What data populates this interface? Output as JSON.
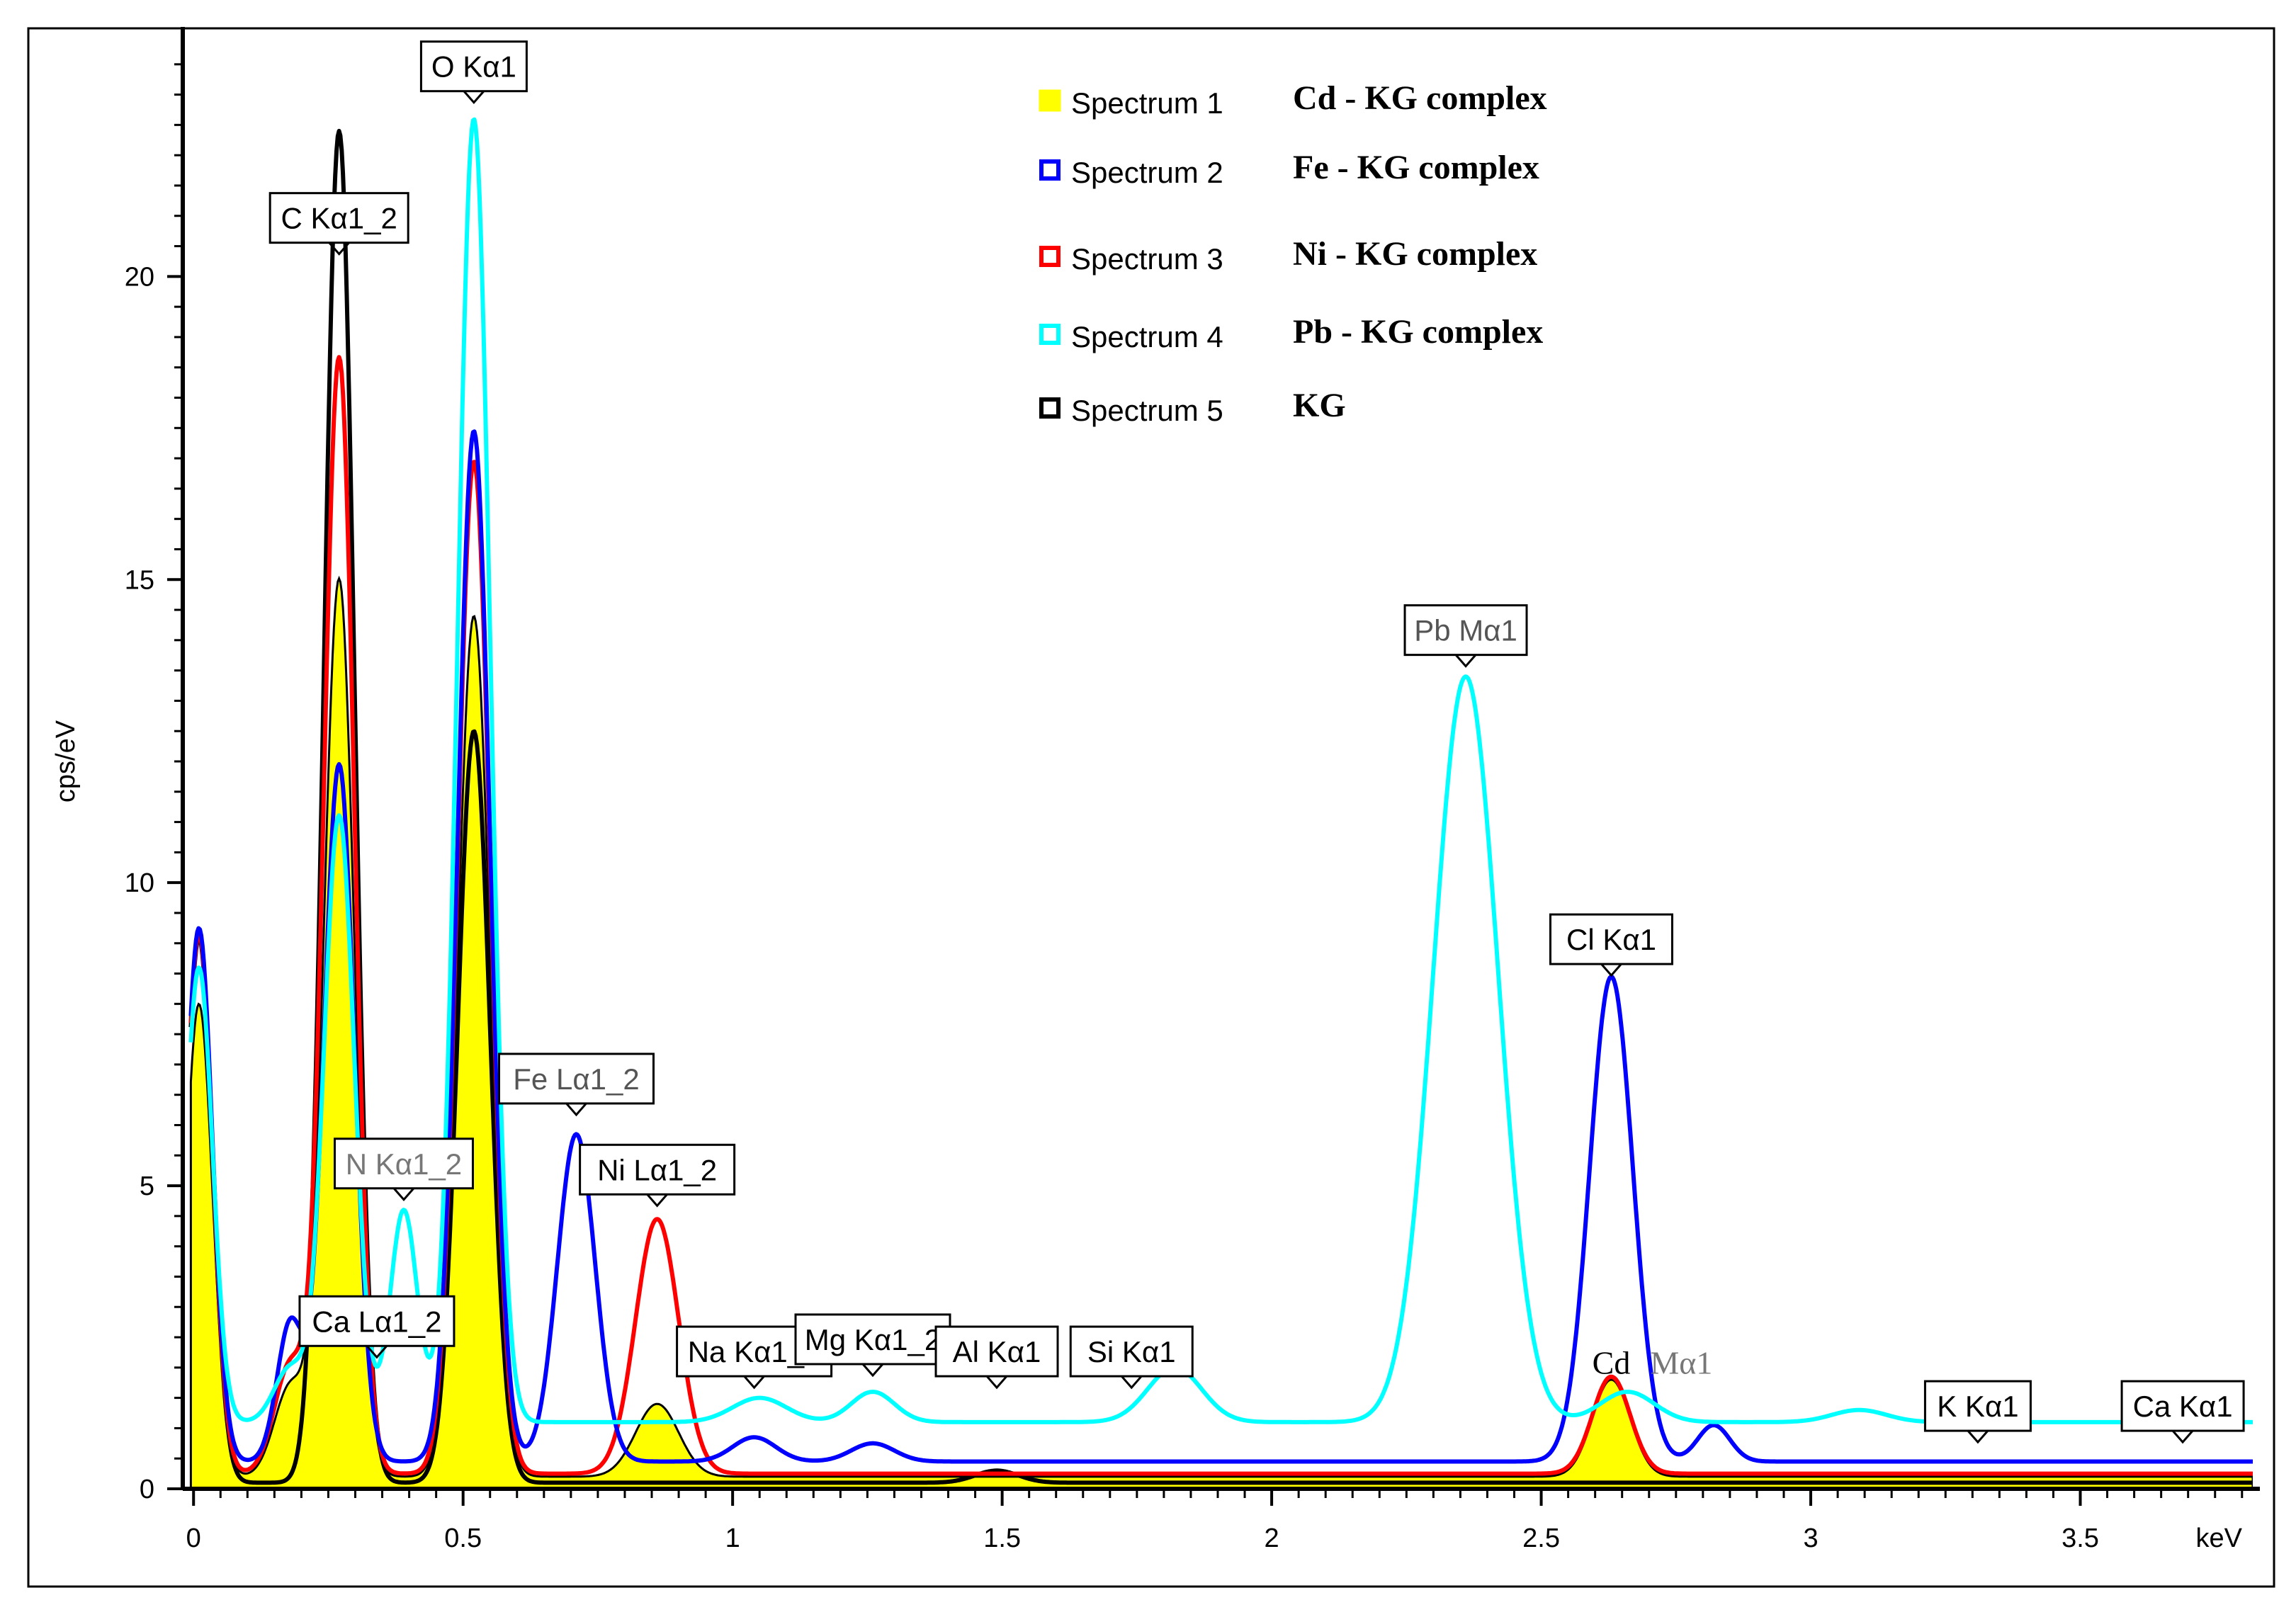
{
  "chart_data": {
    "type": "line",
    "title": "",
    "xlabel": "keV",
    "ylabel": "cps/eV",
    "xlim": [
      -0.02,
      3.82
    ],
    "ylim": [
      0,
      24
    ],
    "x_ticks": [
      0,
      0.5,
      1,
      1.5,
      2,
      2.5,
      3,
      3.5
    ],
    "x_tick_labels": [
      "0",
      "0.5",
      "1",
      "1.5",
      "2",
      "2.5",
      "3",
      "3.5"
    ],
    "y_ticks": [
      0,
      5,
      10,
      15,
      20
    ],
    "y_tick_labels": [
      "0",
      "5",
      "10",
      "15",
      "20"
    ],
    "grid": false,
    "legend_position": "top-center",
    "series": [
      {
        "name": "Spectrum 1",
        "description": "Cd - KG complex",
        "color": "#ffff00",
        "filled": true,
        "baseline": 0.2,
        "peaks": [
          [
            0.01,
            7.8,
            0.025
          ],
          [
            0.18,
            1.5,
            0.03
          ],
          [
            0.27,
            14.8,
            0.028
          ],
          [
            0.52,
            14.2,
            0.03
          ],
          [
            0.86,
            1.2,
            0.04
          ],
          [
            2.63,
            1.6,
            0.035
          ]
        ]
      },
      {
        "name": "Spectrum 2",
        "description": "Fe - KG complex",
        "color": "#0000ff",
        "filled": false,
        "baseline": 0.45,
        "peaks": [
          [
            0.01,
            8.8,
            0.025
          ],
          [
            0.18,
            2.3,
            0.025
          ],
          [
            0.27,
            11.5,
            0.028
          ],
          [
            0.52,
            17.0,
            0.03
          ],
          [
            0.71,
            5.4,
            0.035
          ],
          [
            1.04,
            0.4,
            0.04
          ],
          [
            1.26,
            0.3,
            0.04
          ],
          [
            2.63,
            8.0,
            0.04
          ],
          [
            2.82,
            0.6,
            0.03
          ]
        ]
      },
      {
        "name": "Spectrum 3",
        "description": "Ni - KG complex",
        "color": "#ff0000",
        "filled": false,
        "baseline": 0.25,
        "peaks": [
          [
            0.01,
            8.9,
            0.025
          ],
          [
            0.18,
            1.8,
            0.03
          ],
          [
            0.27,
            18.4,
            0.028
          ],
          [
            0.52,
            16.7,
            0.03
          ],
          [
            0.86,
            4.2,
            0.04
          ],
          [
            2.63,
            1.6,
            0.035
          ]
        ]
      },
      {
        "name": "Spectrum 4",
        "description": "Pb - KG complex",
        "color": "#00ffff",
        "filled": false,
        "baseline": 1.1,
        "peaks": [
          [
            0.01,
            7.5,
            0.025
          ],
          [
            0.18,
            0.9,
            0.03
          ],
          [
            0.27,
            10.0,
            0.028
          ],
          [
            0.39,
            3.5,
            0.025
          ],
          [
            0.52,
            21.5,
            0.03
          ],
          [
            1.05,
            0.4,
            0.05
          ],
          [
            1.26,
            0.5,
            0.04
          ],
          [
            1.82,
            0.9,
            0.05
          ],
          [
            2.36,
            12.3,
            0.06
          ],
          [
            2.66,
            0.5,
            0.05
          ],
          [
            3.09,
            0.2,
            0.05
          ]
        ]
      },
      {
        "name": "Spectrum 5",
        "description": "KG",
        "color": "#000000",
        "filled": false,
        "baseline": 0.1,
        "peaks": [
          [
            0.01,
            9.0,
            0.025
          ],
          [
            0.27,
            22.3,
            0.028
          ],
          [
            0.52,
            12.4,
            0.03
          ],
          [
            1.49,
            0.2,
            0.04
          ]
        ]
      }
    ],
    "annotations": [
      {
        "text": "O Kα1",
        "x": 0.52,
        "y": 22.8,
        "color": "#000000"
      },
      {
        "text": "C Kα1_2",
        "x": 0.27,
        "y": 20.3,
        "color": "#000000"
      },
      {
        "text": "Pb Mα1",
        "x": 2.36,
        "y": 13.5,
        "color": "#555555"
      },
      {
        "text": "Cl Kα1",
        "x": 2.63,
        "y": 8.4,
        "color": "#000000"
      },
      {
        "text": "Fe Lα1_2",
        "x": 0.71,
        "y": 6.1,
        "color": "#555555"
      },
      {
        "text": "Ni Lα1_2",
        "x": 0.86,
        "y": 4.6,
        "color": "#000000"
      },
      {
        "text": "N Kα1_2",
        "x": 0.39,
        "y": 4.7,
        "color": "#777777"
      },
      {
        "text": "Na Kα1_2",
        "x": 1.04,
        "y": 1.6,
        "color": "#000000"
      },
      {
        "text": "Mg Kα1_2",
        "x": 1.26,
        "y": 1.8,
        "color": "#000000"
      },
      {
        "text": "Ca Lα1_2",
        "x": 0.34,
        "y": 2.1,
        "color": "#000000"
      },
      {
        "text": "Al Kα1",
        "x": 1.49,
        "y": 1.6,
        "color": "#000000"
      },
      {
        "text": "Si Kα1",
        "x": 1.74,
        "y": 1.6,
        "color": "#000000"
      },
      {
        "text": "K Kα1",
        "x": 3.31,
        "y": 0.7,
        "color": "#000000"
      },
      {
        "text": "Ca Kα1",
        "x": 3.69,
        "y": 0.7,
        "color": "#000000"
      }
    ],
    "plain_labels": [
      {
        "text": "Cd",
        "x": 2.63,
        "y": 1.9,
        "color": "#000000"
      },
      {
        "text": "Mα1",
        "x": 2.76,
        "y": 1.9,
        "color": "#777777"
      }
    ]
  }
}
